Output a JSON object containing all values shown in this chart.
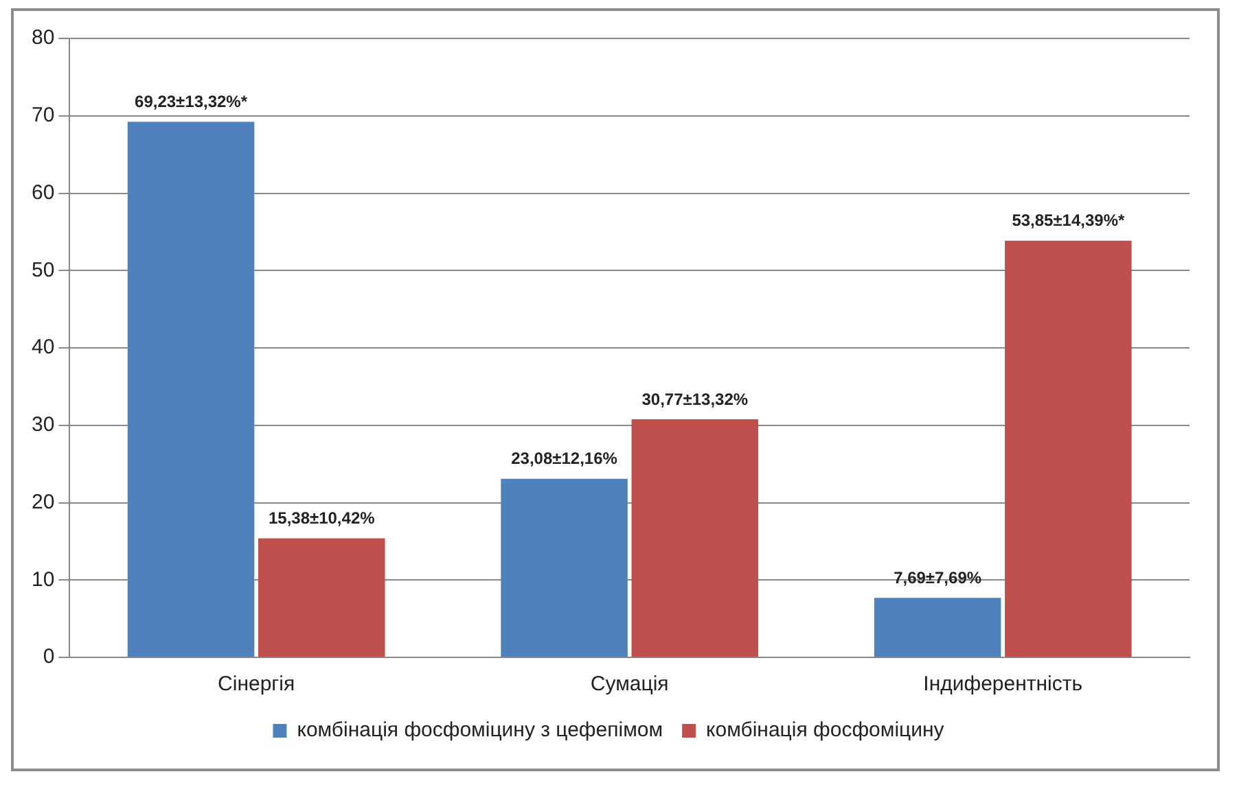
{
  "chart_data": {
    "type": "bar",
    "categories": [
      "Сінергія",
      "Сумація",
      "Індиферентність"
    ],
    "series": [
      {
        "name": "комбінація фосфоміцину з цефепімом",
        "color": "#4f81bd",
        "values": [
          69.23,
          23.08,
          7.69
        ],
        "value_labels": [
          "69,23±13,32%*",
          "23,08±12,16%",
          "7,69±7,69%"
        ]
      },
      {
        "name": "комбінація фосфоміцину",
        "color": "#c0504d",
        "values": [
          15.38,
          30.77,
          53.85
        ],
        "value_labels": [
          "15,38±10,42%",
          "30,77±13,32%",
          "53,85±14,39%*"
        ]
      }
    ],
    "ylim": [
      0,
      80
    ],
    "yticks": [
      0,
      10,
      20,
      30,
      40,
      50,
      60,
      70,
      80
    ],
    "grid": "y",
    "legend": "bottom"
  }
}
